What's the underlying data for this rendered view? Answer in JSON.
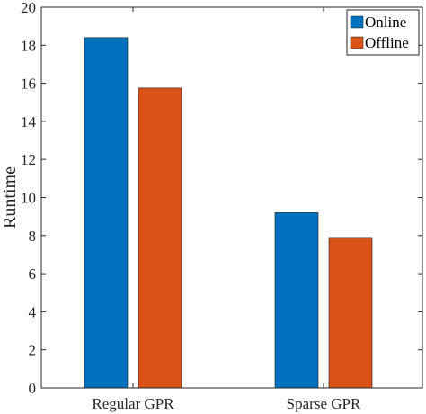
{
  "chart_data": {
    "type": "bar",
    "categories": [
      "Regular GPR",
      "Sparse GPR"
    ],
    "series": [
      {
        "name": "Online",
        "values": [
          18.4,
          9.2
        ],
        "color": "#0072BD"
      },
      {
        "name": "Offline",
        "values": [
          15.75,
          7.9
        ],
        "color": "#D95319"
      }
    ],
    "title": "",
    "xlabel": "",
    "ylabel": "Runtime",
    "ylim": [
      0,
      20
    ],
    "yticks": [
      0,
      2,
      4,
      6,
      8,
      10,
      12,
      14,
      16,
      18,
      20
    ],
    "grid": false,
    "legend_position": "top-right"
  }
}
